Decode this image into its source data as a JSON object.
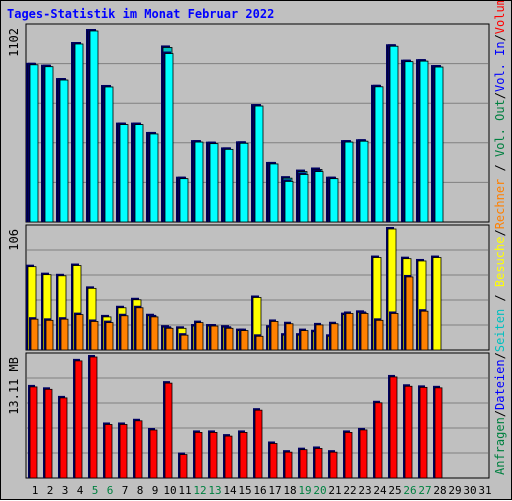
{
  "colors": {
    "background": "#c0c0c0",
    "title": "#0000ff",
    "weekday_label": "#000000",
    "weekend_label": "#008040",
    "hits": "#00c0c0",
    "files": "#00ffff",
    "pages": "#0040ff",
    "visits": "#ffff00",
    "sites": "#ff8000",
    "kbytes": "#ff0000"
  },
  "chart_data": {
    "title": "Tages-Statistik im Monat Februar 2022",
    "type": "bar",
    "x": [
      1,
      2,
      3,
      4,
      5,
      6,
      7,
      8,
      9,
      10,
      11,
      12,
      13,
      14,
      15,
      16,
      17,
      18,
      19,
      20,
      21,
      22,
      23,
      24,
      25,
      26,
      27,
      28,
      29,
      30,
      31
    ],
    "x_tick_labels": [
      "1",
      "2",
      "3",
      "4",
      "5",
      "6",
      "7",
      "8",
      "9",
      "10",
      "11",
      "12",
      "13",
      "14",
      "15",
      "16",
      "17",
      "18",
      "19",
      "20",
      "21",
      "22",
      "23",
      "24",
      "25",
      "26",
      "27",
      "28",
      "29",
      "30",
      "31"
    ],
    "weekend_days": [
      5,
      6,
      12,
      13,
      19,
      20,
      26,
      27
    ],
    "panels": [
      {
        "y_max_label": "1102",
        "ylim": [
          0,
          1102
        ],
        "series": [
          {
            "name": "Anfragen",
            "color": "#00c0c0",
            "values": [
              907,
              896,
              819,
              1027,
              1102,
              779,
              562,
              562,
              508,
              1007,
              250,
              461,
              452,
              419,
              454,
              669,
              335,
              253,
              291,
              303,
              250,
              461,
              466,
              780,
              1014,
              925,
              928,
              894,
              0,
              0,
              0
            ]
          },
          {
            "name": "Dateien",
            "color": "#00ffff",
            "values": [
              907,
              896,
              819,
              1027,
              1102,
              779,
              562,
              562,
              508,
              972,
              250,
              461,
              452,
              419,
              454,
              669,
              335,
              234,
              274,
              291,
              250,
              461,
              466,
              780,
              1014,
              925,
              928,
              894,
              0,
              0,
              0
            ]
          },
          {
            "name": "Seiten",
            "color": "#0040ff",
            "values": [
              0,
              0,
              0,
              0,
              0,
              0,
              0,
              0,
              0,
              1007,
              0,
              0,
              0,
              0,
              0,
              0,
              0,
              0,
              0,
              0,
              0,
              0,
              0,
              0,
              0,
              0,
              0,
              0,
              0,
              0,
              0
            ]
          }
        ]
      },
      {
        "y_max_label": "106",
        "ylim": [
          0,
          106
        ],
        "series": [
          {
            "name": "Besuche",
            "color": "#ffff00",
            "values": [
              73,
              66,
              65,
              74,
              54,
              29,
              37,
              44,
              30,
              20,
              19,
              21,
              21,
              20,
              17,
              46,
              20,
              13,
              13,
              16,
              12,
              31,
              33,
              81,
              106,
              80,
              78,
              81,
              0,
              0,
              0
            ]
          },
          {
            "name": "Rechner",
            "color": "#ff8000",
            "values": [
              27,
              26,
              27,
              31,
              25,
              24,
              30,
              37,
              29,
              19,
              13,
              24,
              21,
              19,
              17,
              12,
              25,
              23,
              17,
              22,
              23,
              32,
              32,
              26,
              32,
              64,
              34,
              0,
              0,
              0,
              0
            ]
          }
        ]
      },
      {
        "y_max_label": "13.11 MB",
        "ylim": [
          0,
          13.11
        ],
        "series": [
          {
            "name": "Volumen",
            "color": "#ff0000",
            "values": [
              9.87,
              9.61,
              8.68,
              12.69,
              13.11,
              5.8,
              5.8,
              6.2,
              5.2,
              10.28,
              2.54,
              4.94,
              4.94,
              4.54,
              4.94,
              7.35,
              3.74,
              2.8,
              3.07,
              3.2,
              2.8,
              4.94,
              5.21,
              8.15,
              10.95,
              9.94,
              9.82,
              9.77,
              0,
              0,
              0
            ]
          }
        ]
      }
    ],
    "right_legend": [
      {
        "text": "Anfragen",
        "color": "#008040"
      },
      {
        "text": "Dateien",
        "color": "#0000ff"
      },
      {
        "text": "Seiten",
        "color": "#00c0c0"
      },
      {
        "text": "Besuche",
        "color": "#ffff00"
      },
      {
        "text": "Rechner",
        "color": "#ff8000"
      },
      {
        "text": "Vol. Out",
        "color": "#008040"
      },
      {
        "text": "Vol. In",
        "color": "#0000ff"
      },
      {
        "text": "Volumen",
        "color": "#ff0000"
      }
    ]
  }
}
